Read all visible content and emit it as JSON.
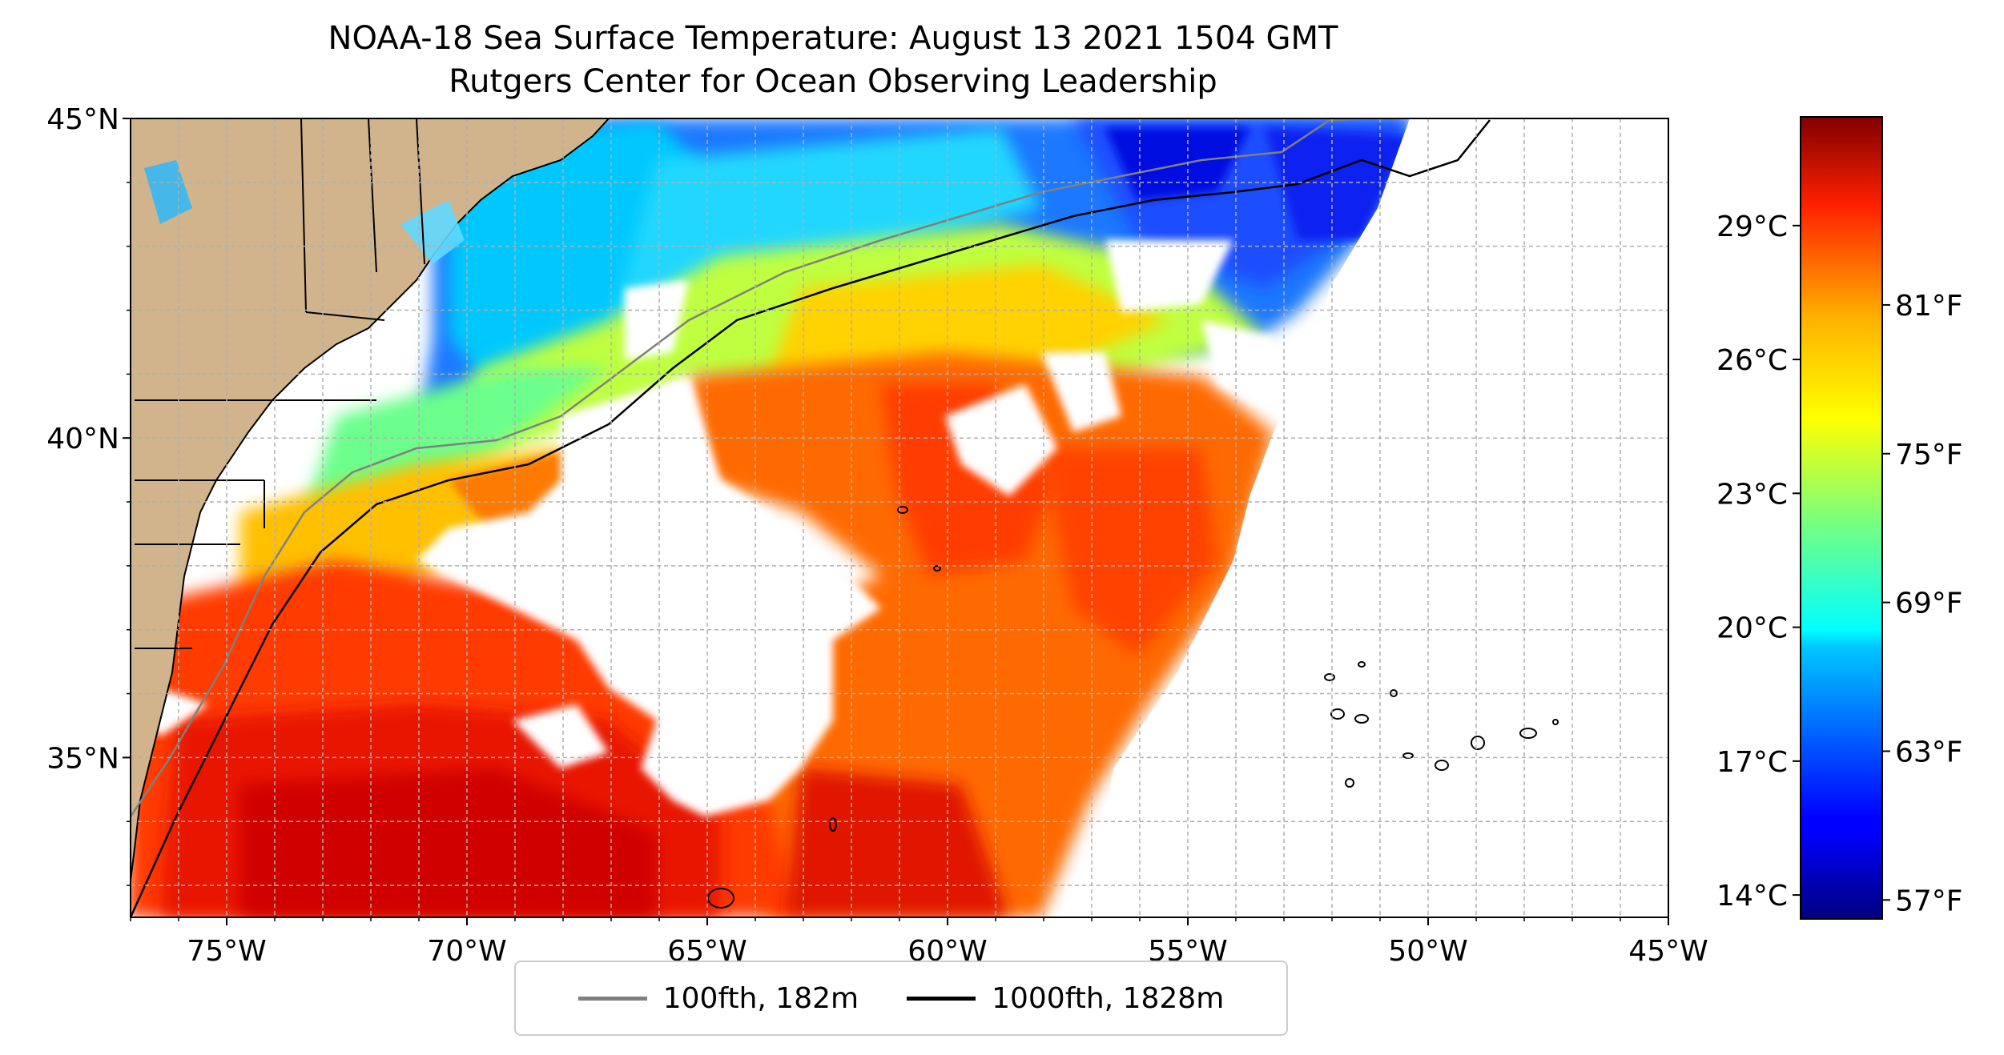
{
  "title": {
    "line1": "NOAA-18 Sea Surface Temperature: August 13 2021 1504 GMT",
    "line2": "Rutgers Center for Ocean Observing Leadership"
  },
  "map": {
    "lon_range": [
      -77,
      -45
    ],
    "lat_range": [
      32.5,
      45
    ],
    "lon_ticks": [
      {
        "value": -75,
        "label": "75°W"
      },
      {
        "value": -70,
        "label": "70°W"
      },
      {
        "value": -65,
        "label": "65°W"
      },
      {
        "value": -60,
        "label": "60°W"
      },
      {
        "value": -55,
        "label": "55°W"
      },
      {
        "value": -50,
        "label": "50°W"
      },
      {
        "value": -45,
        "label": "45°W"
      }
    ],
    "lat_ticks": [
      {
        "value": 35,
        "label": "35°N"
      },
      {
        "value": 40,
        "label": "40°N"
      },
      {
        "value": 45,
        "label": "45°N"
      }
    ],
    "gridlines": true,
    "land_color": "#d2b48c",
    "ocean_color": "#ffffff"
  },
  "colorbar": {
    "colormap": "jet",
    "celsius_ticks": [
      {
        "value": 14,
        "label": "14°C"
      },
      {
        "value": 17,
        "label": "17°C"
      },
      {
        "value": 20,
        "label": "20°C"
      },
      {
        "value": 23,
        "label": "23°C"
      },
      {
        "value": 26,
        "label": "26°C"
      },
      {
        "value": 29,
        "label": "29°C"
      }
    ],
    "fahrenheit_ticks": [
      {
        "value": 57,
        "label": "57°F"
      },
      {
        "value": 63,
        "label": "63°F"
      },
      {
        "value": 69,
        "label": "69°F"
      },
      {
        "value": 75,
        "label": "75°F"
      },
      {
        "value": 81,
        "label": "81°F"
      }
    ]
  },
  "legend": {
    "items": [
      {
        "label": "100fth, 182m",
        "color": "#808080"
      },
      {
        "label": "1000fth, 1828m",
        "color": "#000000"
      }
    ]
  }
}
